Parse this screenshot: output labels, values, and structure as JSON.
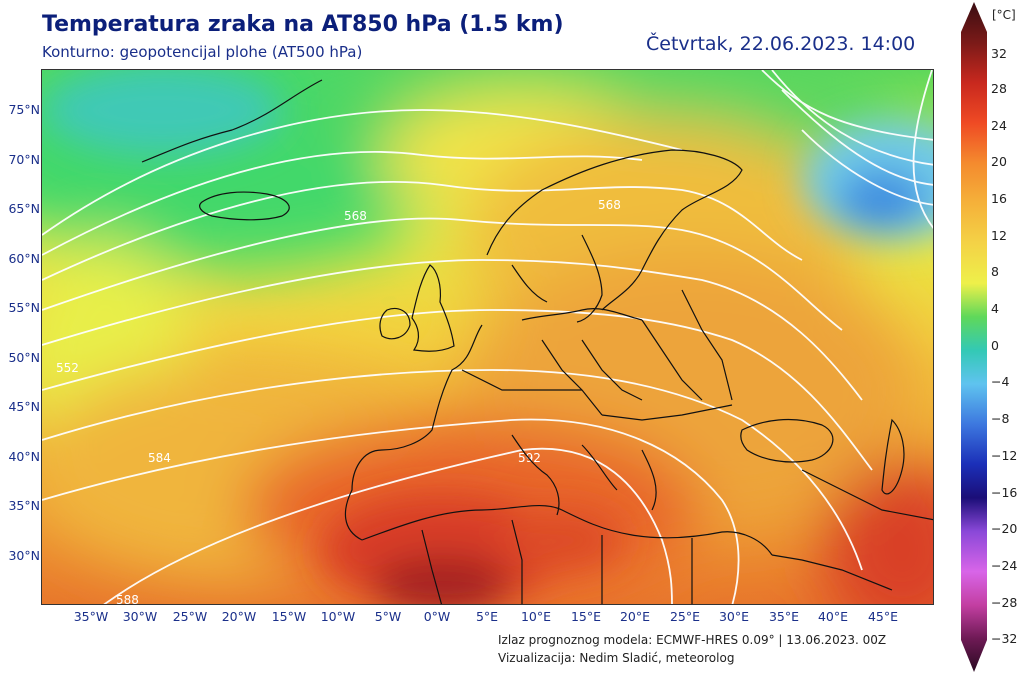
{
  "header": {
    "title": "Temperatura zraka na AT850 hPa (1.5 km)",
    "subtitle": "Konturno: geopotencijal plohe (AT500 hPa)",
    "datetime": "Četvrtak, 22.06.2023. 14:00"
  },
  "footer": {
    "source": "Izlaz prognoznog modela: ECMWF-HRES 0.09° | 13.06.2023. 00Z",
    "credit": "Vizualizacija: Nedim Sladić, meteorolog"
  },
  "axes": {
    "lat_labels": [
      "75°N",
      "70°N",
      "65°N",
      "60°N",
      "55°N",
      "50°N",
      "45°N",
      "40°N",
      "35°N",
      "30°N"
    ],
    "lon_labels": [
      "35°W",
      "30°W",
      "25°W",
      "20°W",
      "15°W",
      "10°W",
      "5°W",
      "0°W",
      "5°E",
      "10°E",
      "15°E",
      "20°E",
      "25°E",
      "30°E",
      "35°E",
      "40°E",
      "45°E"
    ]
  },
  "contour_labels": [
    "568",
    "568",
    "552",
    "584",
    "592",
    "588"
  ],
  "colorbar": {
    "unit": "[°C]",
    "ticks": [
      "32",
      "28",
      "24",
      "20",
      "16",
      "12",
      "8",
      "4",
      "0",
      "−4",
      "−8",
      "−12",
      "−16",
      "−20",
      "−24",
      "−28",
      "−32"
    ]
  }
}
